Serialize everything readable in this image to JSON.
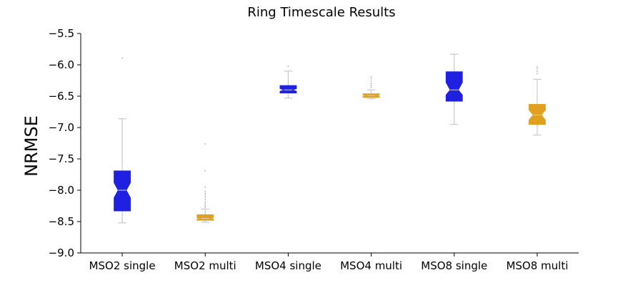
{
  "chart_data": {
    "type": "box",
    "title": "Ring Timescale Results",
    "xlabel": "",
    "ylabel": "NRMSE",
    "ylim": [
      -9.0,
      -5.5
    ],
    "yticks": [
      -9.0,
      -8.5,
      -8.0,
      -7.5,
      -7.0,
      -6.5,
      -6.0,
      -5.5
    ],
    "ytick_labels": [
      "−9.0",
      "−8.5",
      "−8.0",
      "−7.5",
      "−7.0",
      "−6.5",
      "−6.0",
      "−5.5"
    ],
    "categories": [
      "MSO2 single",
      "MSO2 multi",
      "MSO4 single",
      "MSO4 multi",
      "MSO8 single",
      "MSO8 multi"
    ],
    "notched": true,
    "grid": false,
    "colors": [
      "#2020e0",
      "#e0a020",
      "#2020e0",
      "#e0a020",
      "#2020e0",
      "#e0a020"
    ],
    "boxes": [
      {
        "category": "MSO2 single",
        "whislo": -8.52,
        "q1": -8.33,
        "med": -8.0,
        "q3": -7.69,
        "whishi": -6.86,
        "notch_lo": -8.12,
        "notch_hi": -7.88,
        "fliers": [
          -5.89
        ]
      },
      {
        "category": "MSO2 multi",
        "whislo": -8.51,
        "q1": -8.48,
        "med": -8.45,
        "q3": -8.39,
        "whishi": -8.3,
        "notch_lo": -8.46,
        "notch_hi": -8.44,
        "fliers": [
          -7.26,
          -7.69,
          -7.95,
          -8.02,
          -8.05,
          -8.08,
          -8.11,
          -8.15,
          -8.19,
          -8.22,
          -8.25,
          -8.27
        ]
      },
      {
        "category": "MSO4 single",
        "whislo": -6.53,
        "q1": -6.45,
        "med": -6.4,
        "q3": -6.33,
        "whishi": -6.1,
        "notch_lo": -6.42,
        "notch_hi": -6.38,
        "fliers": [
          -6.02
        ]
      },
      {
        "category": "MSO4 multi",
        "whislo": -6.54,
        "q1": -6.52,
        "med": -6.49,
        "q3": -6.46,
        "whishi": -6.4,
        "notch_lo": -6.5,
        "notch_hi": -6.48,
        "fliers": [
          -6.19,
          -6.22,
          -6.26,
          -6.3,
          -6.33,
          -6.36
        ]
      },
      {
        "category": "MSO8 single",
        "whislo": -6.95,
        "q1": -6.58,
        "med": -6.4,
        "q3": -6.11,
        "whishi": -5.83,
        "notch_lo": -6.48,
        "notch_hi": -6.28,
        "fliers": []
      },
      {
        "category": "MSO8 multi",
        "whislo": -7.12,
        "q1": -6.95,
        "med": -6.8,
        "q3": -6.63,
        "whishi": -6.23,
        "notch_lo": -6.88,
        "notch_hi": -6.72,
        "fliers": [
          -6.03,
          -6.06,
          -6.1,
          -6.14
        ]
      }
    ]
  }
}
